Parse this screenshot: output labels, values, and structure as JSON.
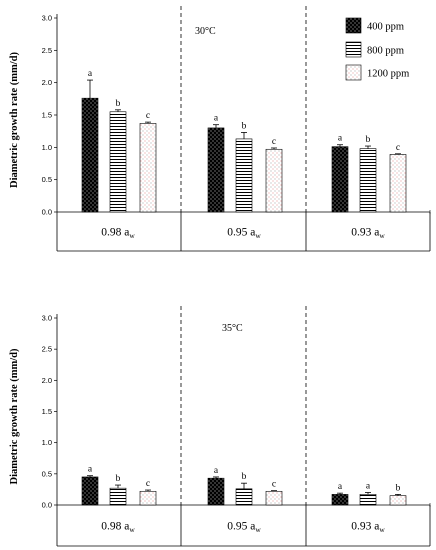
{
  "legend": {
    "position": "top-right",
    "items": [
      {
        "label": "400 ppm",
        "pattern": "dots-dark"
      },
      {
        "label": "800 ppm",
        "pattern": "horizontal-stripes"
      },
      {
        "label": "1200 ppm",
        "pattern": "sparse-dots"
      }
    ]
  },
  "colors": {
    "bar_fill_dark": "#000000",
    "stripe": "#000000",
    "dot_light": "#d86a6a",
    "axis": "#000000"
  },
  "chart_data": [
    {
      "type": "bar",
      "title": "",
      "annotation": "30°C",
      "ylabel": "Diametric growth rate (mm/d)",
      "ylim": [
        0,
        3.0
      ],
      "yticks": [
        "0.0",
        "0.5",
        "1.0",
        "1.5",
        "2.0",
        "2.5",
        "3.0"
      ],
      "categories": [
        {
          "value": "0.98",
          "unit": "a",
          "sub": "w"
        },
        {
          "value": "0.95",
          "unit": "a",
          "sub": "w"
        },
        {
          "value": "0.93",
          "unit": "a",
          "sub": "w"
        }
      ],
      "series": [
        {
          "name": "400 ppm",
          "values": [
            1.76,
            1.3,
            1.01
          ],
          "errors": [
            0.28,
            0.05,
            0.03
          ],
          "letters": [
            "a",
            "a",
            "a"
          ]
        },
        {
          "name": "800 ppm",
          "values": [
            1.55,
            1.13,
            0.98
          ],
          "errors": [
            0.03,
            0.1,
            0.04
          ],
          "letters": [
            "b",
            "b",
            "b"
          ]
        },
        {
          "name": "1200 ppm",
          "values": [
            1.37,
            0.97,
            0.89
          ],
          "errors": [
            0.02,
            0.02,
            0.01
          ],
          "letters": [
            "c",
            "c",
            "c"
          ]
        }
      ]
    },
    {
      "type": "bar",
      "title": "",
      "annotation": "35°C",
      "ylabel": "Diametric growth rate (mm/d)",
      "ylim": [
        0,
        3.0
      ],
      "yticks": [
        "0.0",
        "0.5",
        "1.0",
        "1.5",
        "2.0",
        "2.5",
        "3.0"
      ],
      "categories": [
        {
          "value": "0.98",
          "unit": "a",
          "sub": "w"
        },
        {
          "value": "0.95",
          "unit": "a",
          "sub": "w"
        },
        {
          "value": "0.93",
          "unit": "a",
          "sub": "w"
        }
      ],
      "series": [
        {
          "name": "400 ppm",
          "values": [
            0.45,
            0.43,
            0.17
          ],
          "errors": [
            0.02,
            0.02,
            0.02
          ],
          "letters": [
            "a",
            "a",
            "a"
          ]
        },
        {
          "name": "800 ppm",
          "values": [
            0.27,
            0.26,
            0.17
          ],
          "errors": [
            0.05,
            0.09,
            0.03
          ],
          "letters": [
            "b",
            "b",
            "a"
          ]
        },
        {
          "name": "1200 ppm",
          "values": [
            0.22,
            0.22,
            0.15
          ],
          "errors": [
            0.02,
            0.01,
            0.02
          ],
          "letters": [
            "c",
            "c",
            "b"
          ]
        }
      ]
    }
  ]
}
